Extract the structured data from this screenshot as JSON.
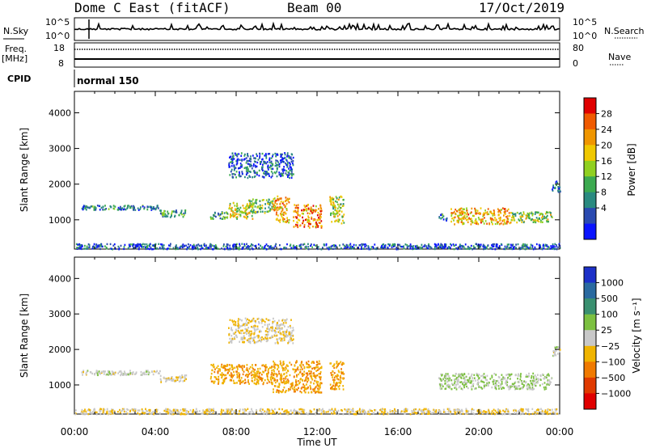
{
  "header": {
    "title": "Dome C East (fitACF)",
    "beam": "Beam 00",
    "date": "17/Oct/2019"
  },
  "summary_panel": {
    "nsky_label": "N.Sky",
    "nsearch_label": "N.Search",
    "freq_label_line1": "Freq.",
    "freq_label_line2": "[MHz]",
    "nave_label": "Nave",
    "cpid_label": "CPID",
    "cpid_value": "normal 150",
    "log_ticks_left": [
      "10^5",
      "10^0"
    ],
    "log_ticks_right": [
      "10^5",
      "10^0"
    ],
    "freq_ticks": [
      "18",
      "8"
    ],
    "nave_ticks": [
      "80",
      "0"
    ]
  },
  "power_colorbar": {
    "label": "Power [dB]",
    "ticks": [
      "28",
      "24",
      "20",
      "16",
      "12",
      "8",
      "4"
    ],
    "colors": [
      "#e00000",
      "#f05a00",
      "#f09600",
      "#f0c800",
      "#90d020",
      "#3caa50",
      "#2a8a80",
      "#2a4ab0",
      "#0a14ff"
    ]
  },
  "velocity_colorbar": {
    "label": "Velocity [m s⁻¹]",
    "ticks": [
      "1000",
      "500",
      "100",
      "25",
      "−25",
      "−100",
      "−500",
      "−1000"
    ],
    "colors": [
      "#1c30c8",
      "#2a6aa0",
      "#3a9070",
      "#7cc040",
      "#c8c8c8",
      "#f0b400",
      "#f07a00",
      "#e03a00",
      "#e00000"
    ]
  },
  "axes": {
    "ylabel": "Slant Range [km]",
    "xlabel": "Time UT",
    "yticks": [
      "4000",
      "3000",
      "2000",
      "1000"
    ],
    "xticks": [
      "00:00",
      "04:00",
      "08:00",
      "12:00",
      "16:00",
      "20:00",
      "00:00"
    ]
  },
  "chart_data": [
    {
      "type": "heatmap",
      "title": "",
      "ylabel": "Slant Range [km]",
      "xlabel": "",
      "x_range_hours": [
        0,
        24
      ],
      "ylim": [
        180,
        4600
      ],
      "colorbar": {
        "label": "Power [dB]",
        "range": [
          0,
          32
        ]
      },
      "echo_regions": [
        {
          "x0": 0.3,
          "x1": 4.2,
          "ymin": 1300,
          "ymax": 1430,
          "value": 8
        },
        {
          "x0": 4.2,
          "x1": 5.5,
          "ymin": 1100,
          "ymax": 1300,
          "value": 10
        },
        {
          "x0": 6.7,
          "x1": 7.6,
          "ymin": 1050,
          "ymax": 1250,
          "value": 12
        },
        {
          "x0": 7.6,
          "x1": 8.8,
          "ymin": 1050,
          "ymax": 1500,
          "value": 18
        },
        {
          "x0": 8.6,
          "x1": 9.8,
          "ymin": 1200,
          "ymax": 1600,
          "value": 14
        },
        {
          "x0": 9.8,
          "x1": 10.6,
          "ymin": 950,
          "ymax": 1700,
          "value": 22
        },
        {
          "x0": 10.8,
          "x1": 12.2,
          "ymin": 800,
          "ymax": 1450,
          "value": 24
        },
        {
          "x0": 12.6,
          "x1": 13.3,
          "ymin": 900,
          "ymax": 1700,
          "value": 16
        },
        {
          "x0": 7.6,
          "x1": 10.8,
          "ymin": 2200,
          "ymax": 2900,
          "value": 6
        },
        {
          "x0": 18.0,
          "x1": 18.4,
          "ymin": 1000,
          "ymax": 1200,
          "value": 8
        },
        {
          "x0": 18.6,
          "x1": 21.5,
          "ymin": 900,
          "ymax": 1350,
          "value": 22
        },
        {
          "x0": 21.5,
          "x1": 23.6,
          "ymin": 950,
          "ymax": 1250,
          "value": 16
        },
        {
          "x0": 23.6,
          "x1": 24.0,
          "ymin": 1800,
          "ymax": 2100,
          "value": 6
        },
        {
          "x0": 0.0,
          "x1": 24.0,
          "ymin": 200,
          "ymax": 350,
          "value": 6
        }
      ]
    },
    {
      "type": "heatmap",
      "title": "",
      "ylabel": "Slant Range [km]",
      "xlabel": "Time UT",
      "x_range_hours": [
        0,
        24
      ],
      "ylim": [
        180,
        4600
      ],
      "colorbar": {
        "label": "Velocity [m s⁻¹]",
        "range": [
          -1000,
          1000
        ]
      },
      "echo_regions": [
        {
          "x0": 0.3,
          "x1": 4.2,
          "ymin": 1300,
          "ymax": 1430,
          "value": 0
        },
        {
          "x0": 4.2,
          "x1": 5.5,
          "ymin": 1100,
          "ymax": 1300,
          "value": -100
        },
        {
          "x0": 6.7,
          "x1": 9.8,
          "ymin": 1050,
          "ymax": 1600,
          "value": -300
        },
        {
          "x0": 9.8,
          "x1": 12.2,
          "ymin": 800,
          "ymax": 1700,
          "value": -300
        },
        {
          "x0": 12.6,
          "x1": 13.3,
          "ymin": 900,
          "ymax": 1700,
          "value": -300
        },
        {
          "x0": 7.6,
          "x1": 10.8,
          "ymin": 2200,
          "ymax": 2900,
          "value": -100
        },
        {
          "x0": 18.0,
          "x1": 23.6,
          "ymin": 900,
          "ymax": 1350,
          "value": 100
        },
        {
          "x0": 23.6,
          "x1": 24.0,
          "ymin": 1800,
          "ymax": 2100,
          "value": 0
        },
        {
          "x0": 0.0,
          "x1": 24.0,
          "ymin": 200,
          "ymax": 350,
          "value": -100
        }
      ]
    }
  ]
}
